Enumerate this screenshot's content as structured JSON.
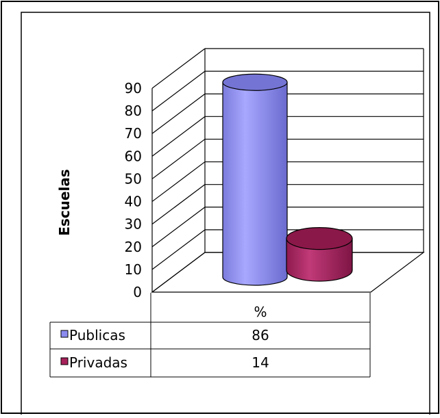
{
  "chart_data": {
    "type": "bar",
    "categories": [
      "%"
    ],
    "series": [
      {
        "name": "Publicas",
        "values": [
          86
        ],
        "color": "#8c8cf0"
      },
      {
        "name": "Privadas",
        "values": [
          14
        ],
        "color": "#a6205a"
      }
    ],
    "ylabel": "Escuelas",
    "xlabel": "",
    "ylim": [
      0,
      90
    ],
    "yticks": [
      "0",
      "10",
      "20",
      "30",
      "40",
      "50",
      "60",
      "70",
      "80",
      "90"
    ],
    "grid": true,
    "legend": "data-table",
    "data_table": {
      "header": "%",
      "rows": [
        {
          "label": "Publicas",
          "value": "86"
        },
        {
          "label": "Privadas",
          "value": "14"
        }
      ]
    }
  }
}
